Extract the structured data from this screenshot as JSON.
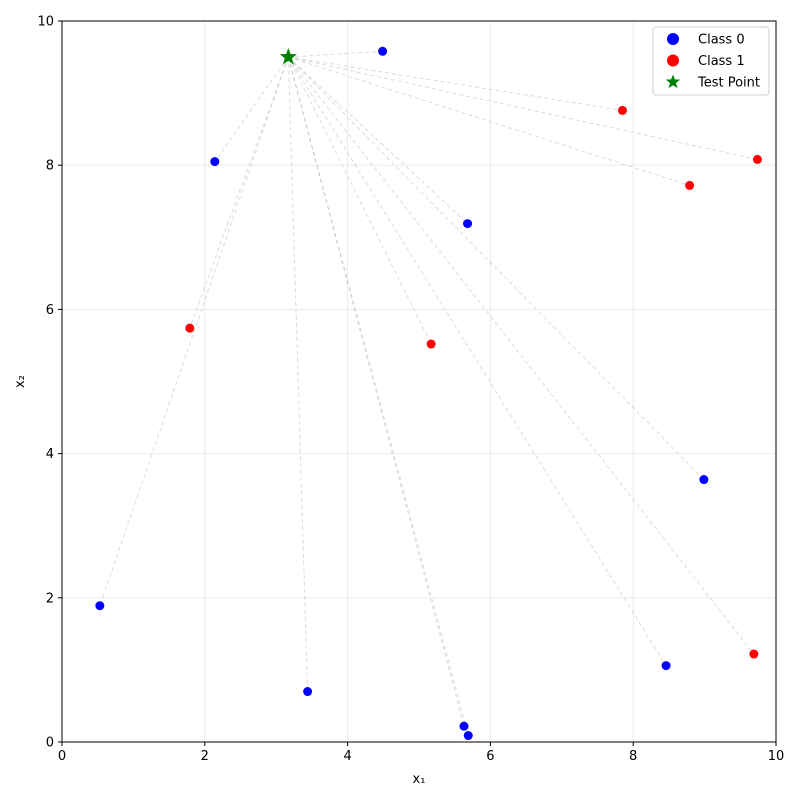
{
  "chart_data": {
    "type": "scatter",
    "title": "",
    "xlabel": "x₁",
    "ylabel": "x₂",
    "xlim": [
      0,
      10
    ],
    "ylim": [
      0,
      10
    ],
    "xticks": [
      0,
      2,
      4,
      6,
      8,
      10
    ],
    "yticks": [
      0,
      2,
      4,
      6,
      8,
      10
    ],
    "grid": true,
    "legend_position": "top-right",
    "series": [
      {
        "name": "Class 0",
        "color": "#0000ff",
        "marker": "circle",
        "points": [
          [
            4.49,
            9.58
          ],
          [
            2.14,
            8.05
          ],
          [
            5.68,
            7.19
          ],
          [
            8.99,
            3.64
          ],
          [
            0.53,
            1.89
          ],
          [
            3.44,
            0.7
          ],
          [
            8.46,
            1.06
          ],
          [
            5.63,
            0.22
          ],
          [
            5.69,
            0.09
          ]
        ]
      },
      {
        "name": "Class 1",
        "color": "#ff0000",
        "marker": "circle",
        "points": [
          [
            7.85,
            8.76
          ],
          [
            9.74,
            8.08
          ],
          [
            8.79,
            7.72
          ],
          [
            1.79,
            5.74
          ],
          [
            5.17,
            5.52
          ],
          [
            9.69,
            1.22
          ]
        ]
      },
      {
        "name": "Test Point",
        "color": "#008000",
        "marker": "star",
        "points": [
          [
            3.17,
            9.5
          ]
        ]
      }
    ],
    "connection_lines": {
      "from": [
        3.17,
        9.5
      ],
      "style": "dashed",
      "color": "#999999"
    }
  }
}
